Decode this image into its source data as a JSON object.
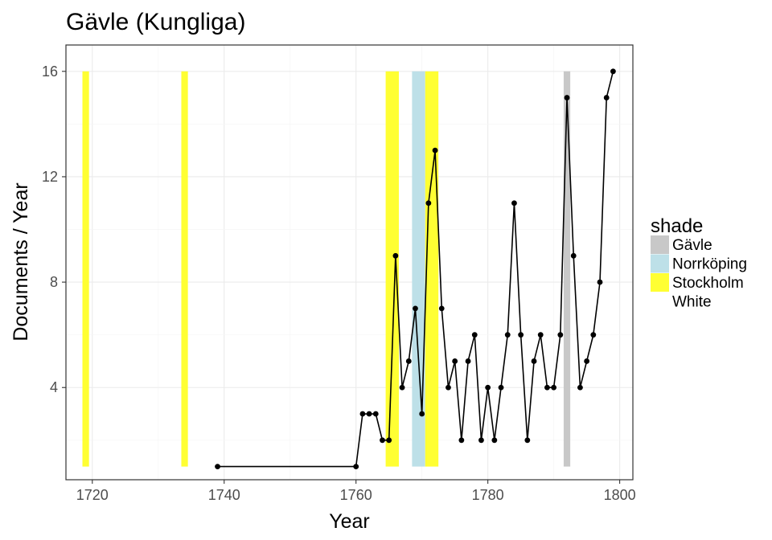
{
  "chart_data": {
    "type": "line",
    "title": "Gävle (Kungliga)",
    "xlabel": "Year",
    "ylabel": "Documents / Year",
    "xlim": [
      1716,
      1802
    ],
    "ylim": [
      0.5,
      17
    ],
    "x_ticks": [
      1720,
      1740,
      1760,
      1780,
      1800
    ],
    "y_ticks": [
      4,
      8,
      12,
      16
    ],
    "grid": true,
    "legend": {
      "title": "shade",
      "placement": "right",
      "entries": [
        {
          "label": "Gävle",
          "color": "#c8c8c8"
        },
        {
          "label": "Norrköping",
          "color": "#bde0e8"
        },
        {
          "label": "Stockholm",
          "color": "#ffff33"
        },
        {
          "label": "White",
          "color": "#ffffff"
        }
      ]
    },
    "shades": [
      {
        "group": "Stockholm",
        "x0": 1718.5,
        "x1": 1719.5,
        "y0": 1,
        "y1": 16
      },
      {
        "group": "Stockholm",
        "x0": 1733.5,
        "x1": 1734.5,
        "y0": 1,
        "y1": 16
      },
      {
        "group": "Stockholm",
        "x0": 1764.5,
        "x1": 1766.5,
        "y0": 1,
        "y1": 16
      },
      {
        "group": "Norrköping",
        "x0": 1768.5,
        "x1": 1770.5,
        "y0": 1,
        "y1": 16
      },
      {
        "group": "Stockholm",
        "x0": 1770.5,
        "x1": 1772.5,
        "y0": 1,
        "y1": 16
      },
      {
        "group": "Gävle",
        "x0": 1791.5,
        "x1": 1792.5,
        "y0": 1,
        "y1": 16
      }
    ],
    "series": [
      {
        "x": [
          1739,
          1760,
          1761,
          1762,
          1763,
          1764,
          1765,
          1766,
          1767,
          1768,
          1769,
          1770,
          1771,
          1772,
          1773,
          1774,
          1775,
          1776,
          1777,
          1778,
          1779,
          1780,
          1781,
          1782,
          1783,
          1784,
          1785,
          1786,
          1787,
          1788,
          1789,
          1790,
          1791,
          1792,
          1793,
          1794,
          1795,
          1796,
          1797,
          1798,
          1799
        ],
        "values": [
          1,
          1,
          3,
          3,
          3,
          2,
          2,
          9,
          4,
          5,
          7,
          3,
          11,
          13,
          7,
          4,
          5,
          2,
          5,
          6,
          2,
          4,
          2,
          4,
          6,
          11,
          6,
          2,
          5,
          6,
          4,
          4,
          6,
          15,
          9,
          4,
          5,
          6,
          8,
          15,
          16
        ]
      }
    ]
  }
}
